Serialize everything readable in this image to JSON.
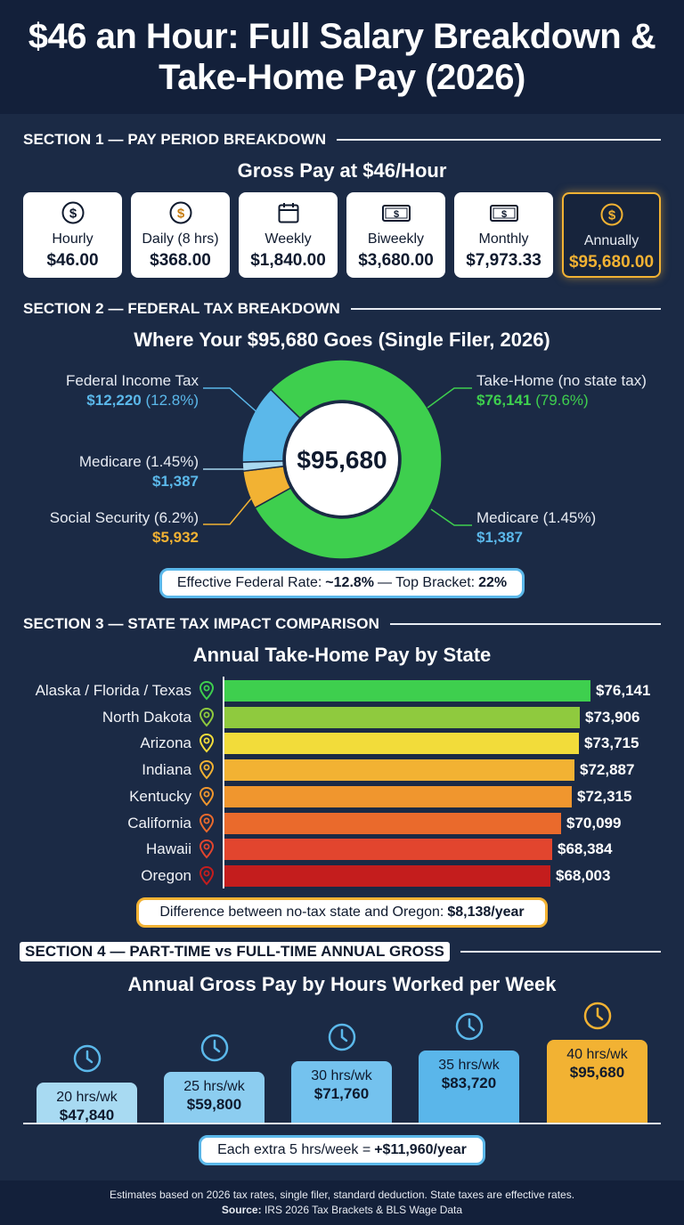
{
  "title": "$46 an Hour: Full Salary Breakdown & Take-Home Pay (2026)",
  "section1": {
    "heading": "SECTION 1 — PAY PERIOD BREAKDOWN",
    "subtitle": "Gross Pay at $46/Hour",
    "cards": [
      {
        "label": "Hourly",
        "value": "$46.00",
        "icon": "dollar-circle-icon"
      },
      {
        "label": "Daily (8 hrs)",
        "value": "$368.00",
        "icon": "dollar-circle-icon"
      },
      {
        "label": "Weekly",
        "value": "$1,840.00",
        "icon": "calendar-icon"
      },
      {
        "label": "Biweekly",
        "value": "$3,680.00",
        "icon": "banknote-icon"
      },
      {
        "label": "Monthly",
        "value": "$7,973.33",
        "icon": "banknote-icon"
      },
      {
        "label": "Annually",
        "value": "$95,680.00",
        "icon": "dollar-circle-icon"
      }
    ]
  },
  "section2": {
    "heading": "SECTION 2 — FEDERAL TAX BREAKDOWN",
    "subtitle": "Where Your $95,680 Goes (Single Filer, 2026)",
    "center_value": "$95,680",
    "labels": {
      "federal_name": "Federal Income Tax",
      "federal_value": "$12,220",
      "federal_pct": "(12.8%)",
      "medicare_left_name": "Medicare (1.45%)",
      "medicare_left_value": "$1,387",
      "ss_name": "Social Security (6.2%)",
      "ss_value": "$5,932",
      "takehome_name": "Take-Home (no state tax)",
      "takehome_value": "$76,141",
      "takehome_pct": "(79.6%)",
      "medicare_right_name": "Medicare (1.45%)",
      "medicare_right_value": "$1,387"
    },
    "rate_pill": {
      "prefix": "Effective Federal Rate:",
      "rate": "~12.8%",
      "mid": "— Top Bracket:",
      "bracket": "22%"
    }
  },
  "section3": {
    "heading": "SECTION 3 — STATE TAX IMPACT COMPARISON",
    "subtitle": "Annual Take-Home Pay by State",
    "diff_pill": {
      "prefix": "Difference between no-tax state and Oregon:",
      "value": "$8,138/year"
    }
  },
  "section4": {
    "heading": "SECTION 4 — PART-TIME vs FULL-TIME ANNUAL GROSS",
    "subtitle": "Annual Gross Pay by Hours Worked per Week",
    "extra_pill": {
      "prefix": "Each extra 5 hrs/week =",
      "value": "+$11,960/year"
    }
  },
  "footer": {
    "line1": "Estimates based on 2026 tax rates, single filer, standard deduction. State taxes are effective rates.",
    "source_label": "Source:",
    "source_text": "IRS 2026 Tax Brackets & BLS Wage Data"
  },
  "colors": {
    "background": "#1b2a45",
    "takehome": "#3ecf4e",
    "federal": "#5bb8ea",
    "social_security": "#f2b233",
    "medicare": "#a8d8f0",
    "highlight": "#f2b233"
  },
  "chart_data": [
    {
      "type": "pie",
      "title": "Where Your $95,680 Goes (Single Filer, 2026)",
      "categories": [
        "Take-Home (no state tax)",
        "Federal Income Tax",
        "Medicare (1.45%)",
        "Social Security (6.2%)"
      ],
      "values": [
        76141,
        12220,
        1387,
        5932
      ],
      "colors": [
        "#3ecf4e",
        "#5bb8ea",
        "#a8d8f0",
        "#f2b233"
      ]
    },
    {
      "type": "bar",
      "orientation": "horizontal",
      "title": "Annual Take-Home Pay by State",
      "categories": [
        "Alaska / Florida / Texas",
        "North Dakota",
        "Arizona",
        "Indiana",
        "Kentucky",
        "California",
        "Hawaii",
        "Oregon"
      ],
      "values": [
        76141,
        73906,
        73715,
        72887,
        72315,
        70099,
        68384,
        68003
      ],
      "labels": [
        "$76,141",
        "$73,906",
        "$73,715",
        "$72,887",
        "$72,315",
        "$70,099",
        "$68,384",
        "$68,003"
      ],
      "colors": [
        "#3ecf4e",
        "#8fca3e",
        "#f2dc3a",
        "#f2b233",
        "#f0962e",
        "#ea6a2c",
        "#e2452e",
        "#c41d1d"
      ]
    },
    {
      "type": "bar",
      "title": "Annual Gross Pay by Hours Worked per Week",
      "categories": [
        "20 hrs/wk",
        "25 hrs/wk",
        "30 hrs/wk",
        "35 hrs/wk",
        "40 hrs/wk"
      ],
      "values": [
        47840,
        59800,
        71760,
        83720,
        95680
      ],
      "labels": [
        "$47,840",
        "$59,800",
        "$71,760",
        "$83,720",
        "$95,680"
      ],
      "colors": [
        "#a8daf2",
        "#8ccdf0",
        "#74c2ee",
        "#5ab6ea",
        "#f2b233"
      ]
    }
  ]
}
